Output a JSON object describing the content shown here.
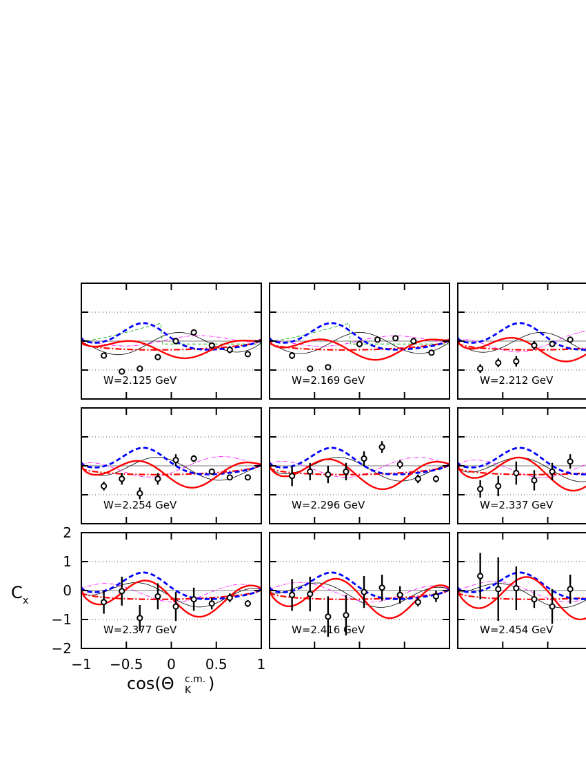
{
  "chart_data": {
    "type": "scatter",
    "xlabel": "cos(Θ",
    "xlabel_sub": "c.m.",
    "xlabel_subsub": "K",
    "xlabel_close": ")",
    "ylabel": "C",
    "ylabel_sub": "x",
    "xlim": [
      -1,
      1
    ],
    "ylim": [
      -2,
      2
    ],
    "x_ticks": [
      "−1",
      "−0.5",
      "0",
      "0.5",
      "1"
    ],
    "y_ticks": [
      "2",
      "1",
      "0",
      "−1",
      "−2"
    ],
    "grid_dotted_y": [
      1,
      -1
    ],
    "line_styles": [
      {
        "color": "#ff0000",
        "style": "solid-thick"
      },
      {
        "color": "#0000ff",
        "style": "dashed-thick"
      },
      {
        "color": "#ff0000",
        "style": "dash-dot"
      },
      {
        "color": "#000000",
        "style": "solid-thin"
      },
      {
        "color": "#ff00ff",
        "style": "dash-dot-thin"
      },
      {
        "color": "#00aa00",
        "style": "dashed-thin"
      }
    ],
    "panels": [
      {
        "label": "W=2.125 GeV",
        "points": [
          [
            -0.75,
            -0.5,
            0.1
          ],
          [
            -0.55,
            -1.05,
            0.1
          ],
          [
            -0.35,
            -0.95,
            0.1
          ],
          [
            -0.15,
            -0.55,
            0.1
          ],
          [
            0.05,
            0.0,
            0.1
          ],
          [
            0.25,
            0.3,
            0.1
          ],
          [
            0.45,
            -0.15,
            0.1
          ],
          [
            0.65,
            -0.3,
            0.12
          ],
          [
            0.85,
            -0.45,
            0.1
          ]
        ]
      },
      {
        "label": "W=2.169 GeV",
        "points": [
          [
            -0.75,
            -0.5,
            0.12
          ],
          [
            -0.55,
            -0.95,
            0.1
          ],
          [
            -0.35,
            -0.9,
            0.1
          ],
          [
            -0.0,
            -0.1,
            0.12
          ],
          [
            0.2,
            0.05,
            0.1
          ],
          [
            0.4,
            0.1,
            0.1
          ],
          [
            0.6,
            0.0,
            0.1
          ],
          [
            0.8,
            -0.4,
            0.1
          ],
          [
            0.0,
            0.0,
            0.0
          ]
        ]
      },
      {
        "label": "W=2.212 GeV",
        "points": [
          [
            -0.75,
            -0.95,
            0.15
          ],
          [
            -0.55,
            -0.75,
            0.15
          ],
          [
            -0.35,
            -0.7,
            0.18
          ],
          [
            -0.15,
            -0.15,
            0.15
          ],
          [
            0.05,
            -0.1,
            0.1
          ],
          [
            0.25,
            0.05,
            0.1
          ]
        ]
      },
      {
        "label": "W=2.254 GeV",
        "points": [
          [
            -0.75,
            -0.7,
            0.15
          ],
          [
            -0.55,
            -0.45,
            0.2
          ],
          [
            -0.35,
            -0.95,
            0.2
          ],
          [
            -0.15,
            -0.45,
            0.2
          ],
          [
            0.05,
            0.2,
            0.2
          ],
          [
            0.25,
            0.25,
            0.12
          ],
          [
            0.45,
            -0.2,
            0.1
          ],
          [
            0.65,
            -0.4,
            0.1
          ],
          [
            0.85,
            -0.4,
            0.1
          ]
        ]
      },
      {
        "label": "W=2.296 GeV",
        "points": [
          [
            -0.75,
            -0.35,
            0.35
          ],
          [
            -0.55,
            -0.2,
            0.3
          ],
          [
            -0.35,
            -0.3,
            0.3
          ],
          [
            -0.15,
            -0.2,
            0.3
          ],
          [
            0.05,
            0.25,
            0.25
          ],
          [
            0.25,
            0.65,
            0.2
          ],
          [
            0.45,
            0.05,
            0.15
          ],
          [
            0.65,
            -0.45,
            0.15
          ],
          [
            0.85,
            -0.45,
            0.12
          ]
        ]
      },
      {
        "label": "W=2.337 GeV",
        "points": [
          [
            -0.75,
            -0.8,
            0.3
          ],
          [
            -0.55,
            -0.7,
            0.35
          ],
          [
            -0.35,
            -0.25,
            0.4
          ],
          [
            -0.15,
            -0.5,
            0.35
          ],
          [
            0.05,
            -0.2,
            0.3
          ],
          [
            0.25,
            0.15,
            0.25
          ]
        ]
      },
      {
        "label": "W=2.377 GeV",
        "points": [
          [
            -0.75,
            -0.4,
            0.4
          ],
          [
            -0.55,
            -0.02,
            0.5
          ],
          [
            -0.35,
            -0.95,
            0.45
          ],
          [
            -0.15,
            -0.2,
            0.45
          ],
          [
            0.05,
            -0.55,
            0.5
          ],
          [
            0.25,
            -0.3,
            0.4
          ],
          [
            0.45,
            -0.45,
            0.2
          ],
          [
            0.65,
            -0.25,
            0.15
          ],
          [
            0.85,
            -0.45,
            0.12
          ]
        ]
      },
      {
        "label": "W=2.416 GeV",
        "points": [
          [
            -0.75,
            -0.15,
            0.55
          ],
          [
            -0.55,
            -0.12,
            0.6
          ],
          [
            -0.35,
            -0.9,
            0.7
          ],
          [
            -0.15,
            -0.85,
            0.7
          ],
          [
            0.05,
            -0.05,
            0.55
          ],
          [
            0.25,
            0.1,
            0.45
          ],
          [
            0.45,
            -0.15,
            0.3
          ],
          [
            0.65,
            -0.4,
            0.15
          ],
          [
            0.85,
            -0.2,
            0.2
          ]
        ]
      },
      {
        "label": "W=2.454 GeV",
        "points": [
          [
            -0.75,
            0.5,
            0.8
          ],
          [
            -0.55,
            0.05,
            1.1
          ],
          [
            -0.35,
            0.08,
            0.75
          ],
          [
            -0.15,
            -0.3,
            0.3
          ],
          [
            0.05,
            -0.55,
            0.6
          ],
          [
            0.25,
            0.05,
            0.5
          ]
        ]
      }
    ]
  }
}
